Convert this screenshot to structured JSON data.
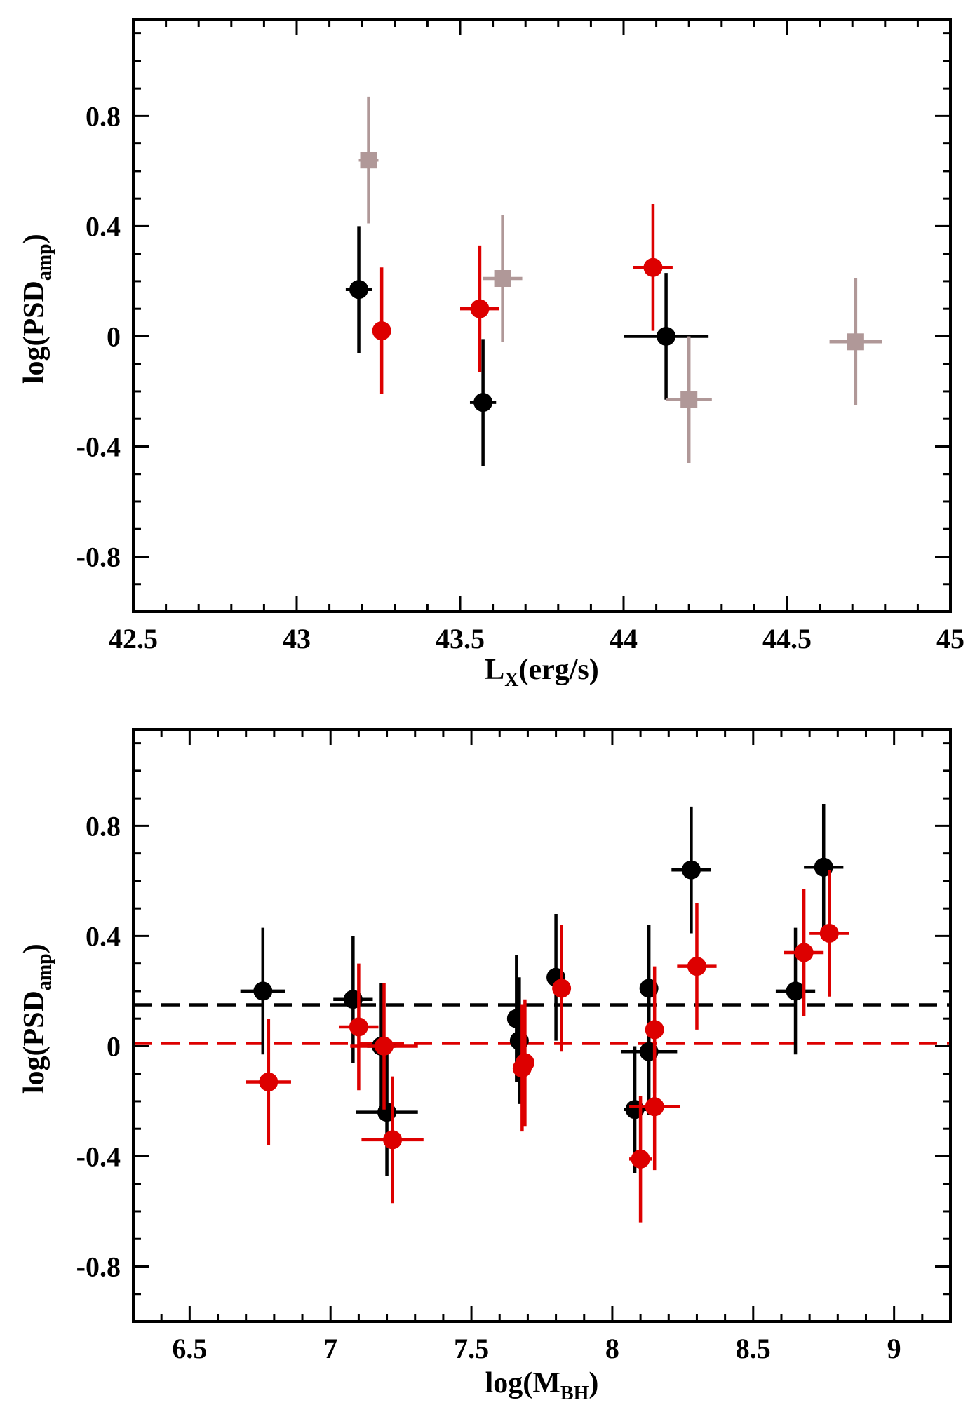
{
  "colors": {
    "black": "#000000",
    "red": "#dd0000",
    "tan": "#b09898"
  },
  "chart_data": [
    {
      "type": "scatter",
      "title": "",
      "xlabel_main": "L",
      "xlabel_sub": "X",
      "xlabel_rest": "(erg/s)",
      "ylabel_main": "log(PSD",
      "ylabel_sub": "amp",
      "ylabel_rest": ")",
      "xlim": [
        42.5,
        45.0
      ],
      "ylim": [
        -1.0,
        1.15
      ],
      "x_ticks": [
        42.5,
        43.0,
        43.5,
        44.0,
        44.5,
        45.0
      ],
      "x_tick_labels": [
        "42.5",
        "43",
        "43.5",
        "44",
        "44.5",
        "45"
      ],
      "y_ticks": [
        -0.8,
        -0.4,
        0.0,
        0.4,
        0.8
      ],
      "y_tick_labels": [
        "-0.8",
        "-0.4",
        "0",
        "0.4",
        "0.8"
      ],
      "series": [
        {
          "name": "black",
          "color": "#000000",
          "marker": "circle",
          "points": [
            {
              "x": 43.19,
              "y": 0.17,
              "xerr": 0.04,
              "yerr": 0.23
            },
            {
              "x": 43.57,
              "y": -0.24,
              "xerr": 0.04,
              "yerr": 0.23
            },
            {
              "x": 44.13,
              "y": 0.0,
              "xerr": 0.13,
              "yerr": 0.23
            }
          ]
        },
        {
          "name": "red",
          "color": "#dd0000",
          "marker": "circle",
          "points": [
            {
              "x": 43.26,
              "y": 0.02,
              "xerr": 0.0,
              "yerr": 0.23
            },
            {
              "x": 43.56,
              "y": 0.1,
              "xerr": 0.06,
              "yerr": 0.23
            },
            {
              "x": 44.09,
              "y": 0.25,
              "xerr": 0.06,
              "yerr": 0.23
            }
          ]
        },
        {
          "name": "tan",
          "color": "#b09898",
          "marker": "square",
          "points": [
            {
              "x": 43.22,
              "y": 0.64,
              "xerr": 0.03,
              "yerr": 0.23
            },
            {
              "x": 43.63,
              "y": 0.21,
              "xerr": 0.06,
              "yerr": 0.23
            },
            {
              "x": 44.2,
              "y": -0.23,
              "xerr": 0.07,
              "yerr": 0.23
            },
            {
              "x": 44.71,
              "y": -0.02,
              "xerr": 0.08,
              "yerr": 0.23
            }
          ]
        }
      ],
      "hlines": []
    },
    {
      "type": "scatter",
      "title": "",
      "xlabel_main": "log(M",
      "xlabel_sub": "BH",
      "xlabel_rest": ")",
      "ylabel_main": "log(PSD",
      "ylabel_sub": "amp",
      "ylabel_rest": ")",
      "xlim": [
        6.3,
        9.2
      ],
      "ylim": [
        -1.0,
        1.15
      ],
      "x_ticks": [
        6.5,
        7.0,
        7.5,
        8.0,
        8.5,
        9.0
      ],
      "x_tick_labels": [
        "6.5",
        "7",
        "7.5",
        "8",
        "8.5",
        "9"
      ],
      "y_ticks": [
        -0.8,
        -0.4,
        0.0,
        0.4,
        0.8
      ],
      "y_tick_labels": [
        "-0.8",
        "-0.4",
        "0",
        "0.4",
        "0.8"
      ],
      "series": [
        {
          "name": "black",
          "color": "#000000",
          "marker": "circle",
          "points": [
            {
              "x": 6.76,
              "y": 0.2,
              "xerr": 0.08,
              "yerr": 0.23
            },
            {
              "x": 7.08,
              "y": 0.17,
              "xerr": 0.07,
              "yerr": 0.23
            },
            {
              "x": 7.18,
              "y": 0.0,
              "xerr": 0.05,
              "yerr": 0.23
            },
            {
              "x": 7.2,
              "y": -0.24,
              "xerr": 0.11,
              "yerr": 0.23
            },
            {
              "x": 7.66,
              "y": 0.1,
              "xerr": 0.0,
              "yerr": 0.23
            },
            {
              "x": 7.67,
              "y": 0.02,
              "xerr": 0.0,
              "yerr": 0.23
            },
            {
              "x": 7.8,
              "y": 0.25,
              "xerr": 0.0,
              "yerr": 0.23
            },
            {
              "x": 8.08,
              "y": -0.23,
              "xerr": 0.04,
              "yerr": 0.23
            },
            {
              "x": 8.13,
              "y": 0.21,
              "xerr": 0.0,
              "yerr": 0.23
            },
            {
              "x": 8.13,
              "y": -0.02,
              "xerr": 0.1,
              "yerr": 0.23
            },
            {
              "x": 8.28,
              "y": 0.64,
              "xerr": 0.07,
              "yerr": 0.23
            },
            {
              "x": 8.65,
              "y": 0.2,
              "xerr": 0.07,
              "yerr": 0.23
            },
            {
              "x": 8.75,
              "y": 0.65,
              "xerr": 0.07,
              "yerr": 0.23
            }
          ]
        },
        {
          "name": "red",
          "color": "#dd0000",
          "marker": "circle",
          "points": [
            {
              "x": 6.78,
              "y": -0.13,
              "xerr": 0.08,
              "yerr": 0.23
            },
            {
              "x": 7.1,
              "y": 0.07,
              "xerr": 0.07,
              "yerr": 0.23
            },
            {
              "x": 7.19,
              "y": 0.0,
              "xerr": 0.12,
              "yerr": 0.23
            },
            {
              "x": 7.22,
              "y": -0.34,
              "xerr": 0.11,
              "yerr": 0.23
            },
            {
              "x": 7.68,
              "y": -0.08,
              "xerr": 0.0,
              "yerr": 0.23
            },
            {
              "x": 7.69,
              "y": -0.06,
              "xerr": 0.0,
              "yerr": 0.23
            },
            {
              "x": 7.82,
              "y": 0.21,
              "xerr": 0.0,
              "yerr": 0.23
            },
            {
              "x": 8.1,
              "y": -0.41,
              "xerr": 0.04,
              "yerr": 0.23
            },
            {
              "x": 8.15,
              "y": 0.06,
              "xerr": 0.0,
              "yerr": 0.23
            },
            {
              "x": 8.15,
              "y": -0.22,
              "xerr": 0.09,
              "yerr": 0.23
            },
            {
              "x": 8.3,
              "y": 0.29,
              "xerr": 0.07,
              "yerr": 0.23
            },
            {
              "x": 8.68,
              "y": 0.34,
              "xerr": 0.07,
              "yerr": 0.23
            },
            {
              "x": 8.77,
              "y": 0.41,
              "xerr": 0.07,
              "yerr": 0.23
            }
          ]
        }
      ],
      "hlines": [
        {
          "name": "black-mean",
          "y": 0.15,
          "color": "#000000",
          "style": "dashed"
        },
        {
          "name": "red-mean",
          "y": 0.01,
          "color": "#dd0000",
          "style": "dashed"
        }
      ]
    }
  ]
}
